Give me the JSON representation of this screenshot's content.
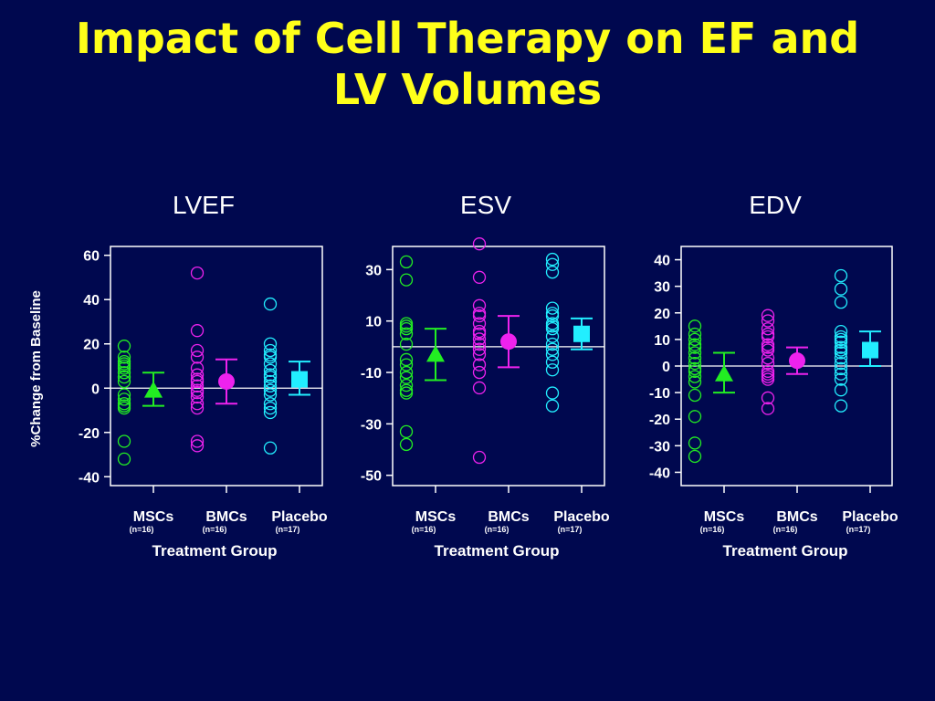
{
  "slide": {
    "title_line1": "Impact of Cell Therapy on EF and",
    "title_line2": "LV Volumes"
  },
  "colors": {
    "background": "#00084f",
    "title": "#ffff1a",
    "MSCs": "#22ee22",
    "BMCs": "#ee22ee",
    "Placebo": "#22eeff"
  },
  "chart_data": [
    {
      "type": "scatter",
      "title": "LVEF",
      "ylabel": "%Change from Baseline",
      "xlabel": "Treatment Group",
      "ylim": [
        -44,
        64
      ],
      "yticks": [
        60,
        40,
        20,
        0,
        -20,
        -40
      ],
      "zero_line": true,
      "categories": [
        {
          "name": "MSCs",
          "n": "(n=16)"
        },
        {
          "name": "BMCs",
          "n": "(n=16)"
        },
        {
          "name": "Placebo",
          "n": "(n=17)"
        }
      ],
      "series": [
        {
          "name": "MSCs",
          "marker": "triangle",
          "mean": -1,
          "ci": [
            -8,
            7
          ],
          "values": [
            19,
            14,
            12,
            10,
            9,
            7,
            5,
            -3,
            -5,
            -7,
            -8,
            -9,
            -24,
            -32,
            3,
            11
          ]
        },
        {
          "name": "BMCs",
          "marker": "circle",
          "mean": 3,
          "ci": [
            -7,
            13
          ],
          "values": [
            52,
            26,
            17,
            14,
            6,
            4,
            1,
            -2,
            -4,
            -7,
            -9,
            -24,
            -26,
            9,
            -1,
            3
          ]
        },
        {
          "name": "Placebo",
          "marker": "square",
          "mean": 4,
          "ci": [
            -3,
            12
          ],
          "values": [
            38,
            20,
            17,
            14,
            11,
            8,
            6,
            3,
            1,
            -1,
            -3,
            -7,
            -9,
            -11,
            -27,
            15,
            5
          ]
        }
      ]
    },
    {
      "type": "scatter",
      "title": "ESV",
      "xlabel": "Treatment Group",
      "ylim": [
        -54,
        39
      ],
      "yticks": [
        30,
        10,
        -10,
        -30,
        -50
      ],
      "zero_line": true,
      "categories": [
        {
          "name": "MSCs",
          "n": "(n=16)"
        },
        {
          "name": "BMCs",
          "n": "(n=16)"
        },
        {
          "name": "Placebo",
          "n": "(n=17)"
        }
      ],
      "series": [
        {
          "name": "MSCs",
          "marker": "triangle",
          "mean": -3,
          "ci": [
            -13,
            7
          ],
          "values": [
            33,
            26,
            9,
            7,
            5,
            1,
            -5,
            -7,
            -10,
            -12,
            -15,
            -17,
            -18,
            -33,
            -38,
            8
          ]
        },
        {
          "name": "BMCs",
          "marker": "circle",
          "mean": 2,
          "ci": [
            -8,
            12
          ],
          "values": [
            40,
            27,
            16,
            13,
            9,
            6,
            3,
            1,
            -3,
            -7,
            -10,
            -16,
            -43,
            12,
            5,
            -1
          ]
        },
        {
          "name": "Placebo",
          "marker": "square",
          "mean": 5,
          "ci": [
            -1,
            11
          ],
          "values": [
            34,
            32,
            29,
            15,
            12,
            9,
            7,
            4,
            1,
            -3,
            -6,
            -9,
            -18,
            -23,
            13,
            8,
            -1
          ]
        }
      ]
    },
    {
      "type": "scatter",
      "title": "EDV",
      "xlabel": "Treatment Group",
      "ylim": [
        -45,
        45
      ],
      "yticks": [
        40,
        30,
        20,
        10,
        0,
        -10,
        -20,
        -30,
        -40
      ],
      "zero_line": true,
      "categories": [
        {
          "name": "MSCs",
          "n": "(n=16)"
        },
        {
          "name": "BMCs",
          "n": "(n=16)"
        },
        {
          "name": "Placebo",
          "n": "(n=17)"
        }
      ],
      "series": [
        {
          "name": "MSCs",
          "marker": "triangle",
          "mean": -3,
          "ci": [
            -10,
            5
          ],
          "values": [
            15,
            12,
            10,
            7,
            5,
            3,
            1,
            -2,
            -4,
            -6,
            -11,
            -19,
            -29,
            -34,
            8,
            -1
          ]
        },
        {
          "name": "BMCs",
          "marker": "circle",
          "mean": 2,
          "ci": [
            -3,
            7
          ],
          "values": [
            19,
            17,
            14,
            11,
            8,
            6,
            3,
            1,
            -2,
            -4,
            -5,
            -12,
            -16,
            12,
            7,
            -3
          ]
        },
        {
          "name": "Placebo",
          "marker": "square",
          "mean": 6,
          "ci": [
            0,
            13
          ],
          "values": [
            34,
            29,
            24,
            13,
            11,
            9,
            7,
            5,
            3,
            1,
            -1,
            -3,
            -5,
            -9,
            -15,
            10,
            6
          ]
        }
      ]
    }
  ]
}
